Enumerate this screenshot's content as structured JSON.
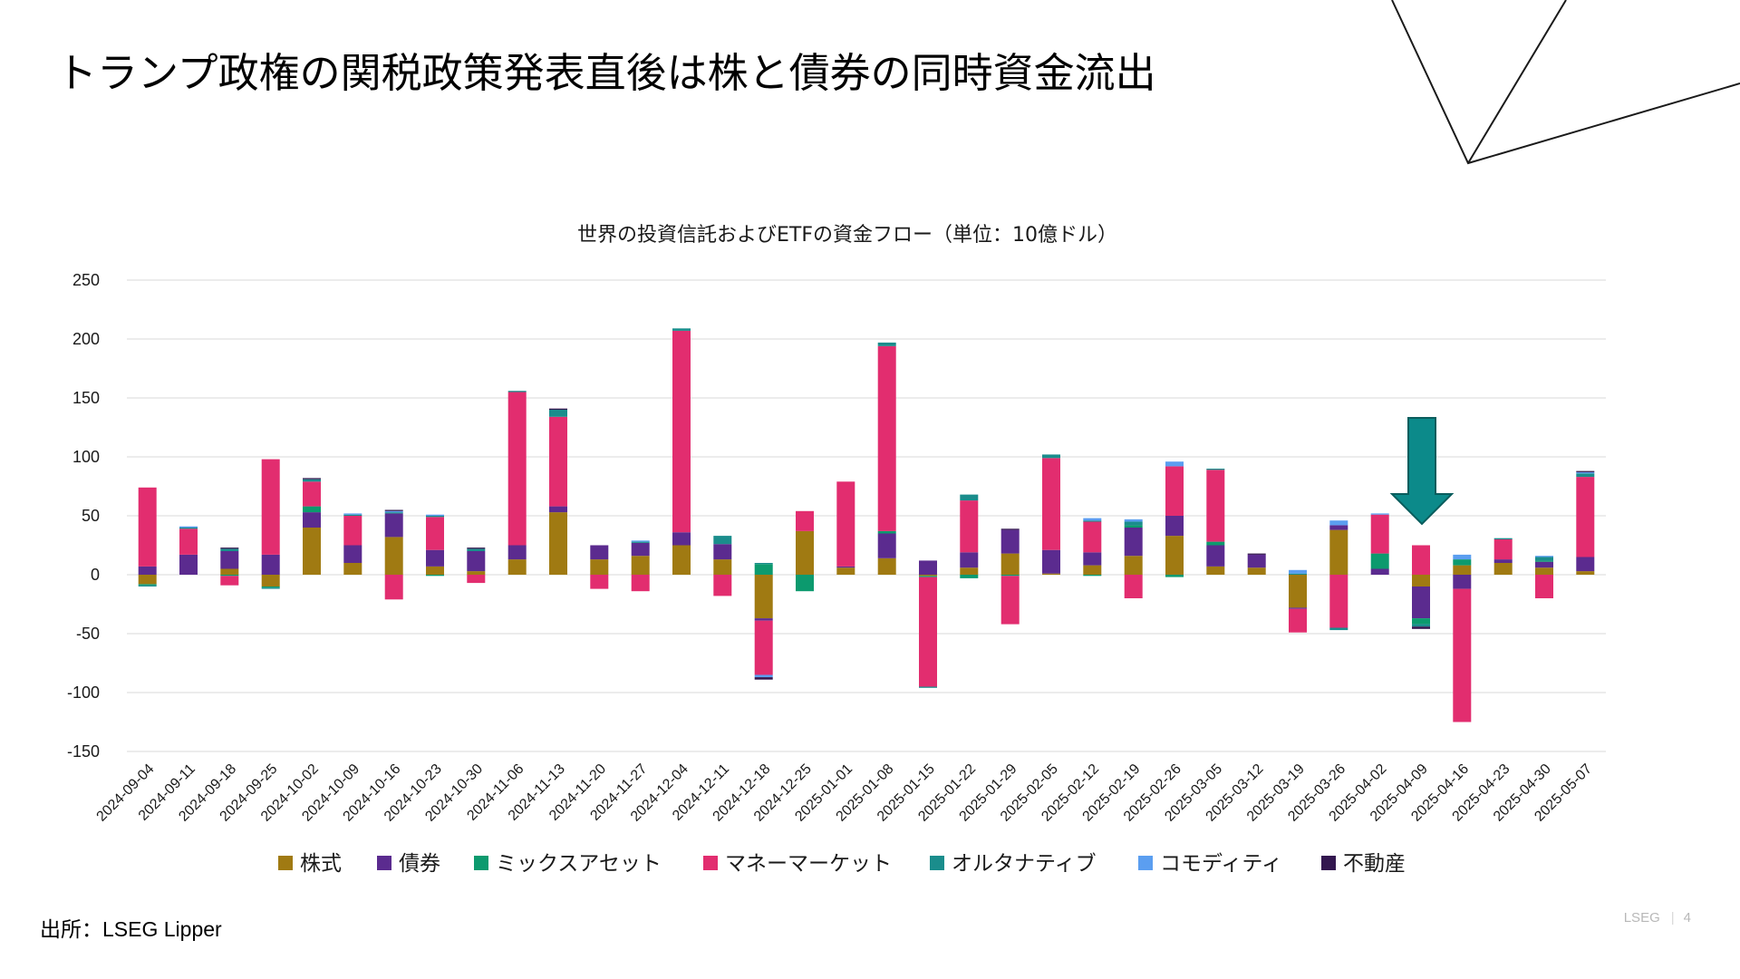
{
  "slide": {
    "title": "トランプ政権の関税政策発表直後は株と債券の同時資金流出",
    "source": "出所：LSEG Lipper",
    "footer_brand": "LSEG",
    "page_number": "4"
  },
  "chart_data": {
    "type": "bar",
    "stacked": true,
    "title": "世界の投資信託およびETFの資金フロー（単位：10億ドル）",
    "ylim": [
      -150,
      250
    ],
    "yticks": [
      250,
      200,
      150,
      100,
      50,
      0,
      -50,
      -100,
      -150
    ],
    "grid": true,
    "legend_position": "bottom",
    "categories": [
      "2024-09-04",
      "2024-09-11",
      "2024-09-18",
      "2024-09-25",
      "2024-10-02",
      "2024-10-09",
      "2024-10-16",
      "2024-10-23",
      "2024-10-30",
      "2024-11-06",
      "2024-11-13",
      "2024-11-20",
      "2024-11-27",
      "2024-12-04",
      "2024-12-11",
      "2024-12-18",
      "2024-12-25",
      "2025-01-01",
      "2025-01-08",
      "2025-01-15",
      "2025-01-22",
      "2025-01-29",
      "2025-02-05",
      "2025-02-12",
      "2025-02-19",
      "2025-02-26",
      "2025-03-05",
      "2025-03-12",
      "2025-03-19",
      "2025-03-26",
      "2025-04-02",
      "2025-04-09",
      "2025-04-16",
      "2025-04-23",
      "2025-04-30",
      "2025-05-07"
    ],
    "series": [
      {
        "name": "株式",
        "color": "#a07a12",
        "values": [
          -8,
          0,
          5,
          -10,
          40,
          10,
          32,
          7,
          3,
          13,
          53,
          13,
          16,
          25,
          13,
          -37,
          37,
          6,
          14,
          -1,
          6,
          18,
          1,
          8,
          16,
          33,
          7,
          6,
          -28,
          38,
          0,
          -10,
          8,
          10,
          6,
          3
        ]
      },
      {
        "name": "債券",
        "color": "#5b2b8f",
        "values": [
          7,
          17,
          15,
          17,
          13,
          15,
          20,
          14,
          17,
          12,
          5,
          12,
          11,
          11,
          13,
          -2,
          0,
          1,
          21,
          12,
          13,
          20,
          20,
          11,
          24,
          17,
          18,
          11,
          -1,
          4,
          5,
          -27,
          -12,
          3,
          5,
          12
        ]
      },
      {
        "name": "ミックスアセット",
        "color": "#0c9a6e",
        "values": [
          -1,
          0,
          -1,
          -1,
          5,
          0,
          0,
          -1,
          0,
          0,
          0,
          0,
          0,
          0,
          0,
          9,
          -14,
          0,
          2,
          -1,
          -3,
          -1,
          0,
          -1,
          2,
          -2,
          3,
          0,
          0,
          0,
          13,
          -5,
          5,
          0,
          1,
          0
        ]
      },
      {
        "name": "マネーマーケット",
        "color": "#e22d6f",
        "values": [
          67,
          22,
          -8,
          81,
          21,
          25,
          -21,
          28,
          -7,
          130,
          76,
          -12,
          -14,
          171,
          -18,
          -46,
          17,
          72,
          157,
          -93,
          44,
          -41,
          78,
          26,
          -20,
          42,
          61,
          0,
          -20,
          -45,
          33,
          25,
          -113,
          17,
          -20,
          68
        ]
      },
      {
        "name": "オルタナティブ",
        "color": "#1a8d8c",
        "values": [
          -1,
          1,
          2,
          -1,
          2,
          1,
          1,
          1,
          2,
          1,
          6,
          0,
          1,
          2,
          7,
          1,
          0,
          0,
          3,
          -1,
          5,
          0,
          3,
          1,
          3,
          0,
          1,
          0,
          1,
          -2,
          0,
          -2,
          0,
          1,
          3,
          3
        ]
      },
      {
        "name": "コモディティ",
        "color": "#5b9ef0",
        "values": [
          0,
          1,
          0,
          0,
          0,
          1,
          1,
          1,
          0,
          0,
          0,
          0,
          1,
          0,
          0,
          -2,
          0,
          0,
          0,
          0,
          0,
          0,
          0,
          2,
          2,
          4,
          0,
          0,
          3,
          4,
          1,
          0,
          4,
          0,
          1,
          1
        ]
      },
      {
        "name": "不動産",
        "color": "#33174f",
        "values": [
          0,
          0,
          1,
          0,
          1,
          0,
          1,
          0,
          1,
          0,
          1,
          0,
          0,
          0,
          0,
          -2,
          0,
          0,
          0,
          0,
          0,
          1,
          0,
          0,
          0,
          0,
          0,
          1,
          0,
          0,
          0,
          -2,
          0,
          0,
          0,
          1
        ]
      }
    ]
  }
}
